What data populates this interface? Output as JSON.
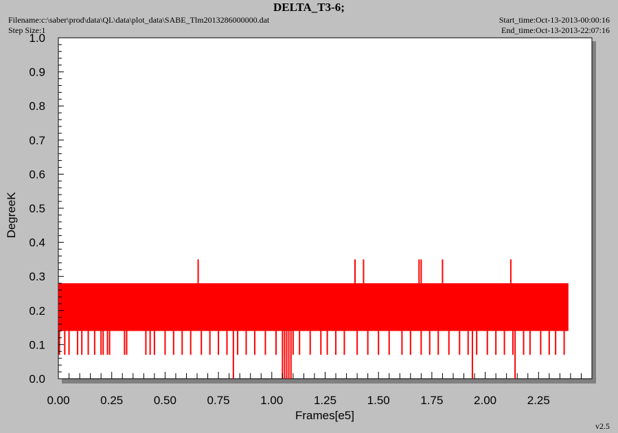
{
  "header": {
    "title": "DELTA_T3-6;",
    "filename": "Filename:c:\\saber\\prod\\data\\QL\\data\\plot_data\\SABE_Tlm2013286000000.dat",
    "step_size": "Step Size:1",
    "start_time": "Start_time:Oct-13-2013-00:00:16",
    "end_time": "End_time:Oct-13-2013-22:07:16"
  },
  "version": "v2.5",
  "colors": {
    "series": "#ff0000",
    "plot_bg": "#ffffff",
    "page_bg": "#c0c0c0"
  },
  "chart_data": {
    "type": "line",
    "title": "DELTA_T3-6;",
    "xlabel": "Frames[e5]",
    "ylabel": "DegreeK",
    "xlim": [
      0,
      2.5
    ],
    "ylim": [
      0,
      1.0
    ],
    "xticks": [
      "0.00",
      "0.25",
      "0.50",
      "0.75",
      "1.00",
      "1.25",
      "1.50",
      "1.75",
      "2.00",
      "2.25"
    ],
    "yticks": [
      "0.0",
      "0.1",
      "0.2",
      "0.3",
      "0.4",
      "0.5",
      "0.6",
      "0.7",
      "0.8",
      "0.9",
      "1.0"
    ],
    "grid": false,
    "series": [
      {
        "band": {
          "x": [
            0.0,
            2.39
          ],
          "y": [
            0.14,
            0.28
          ],
          "description_values": [
            0.14,
            0.21,
            0.28
          ]
        },
        "low_spikes_to_007": [
          0.005,
          0.03,
          0.05,
          0.09,
          0.11,
          0.14,
          0.17,
          0.2,
          0.21,
          0.23,
          0.24,
          0.31,
          0.32,
          0.41,
          0.43,
          0.45,
          0.5,
          0.54,
          0.58,
          0.62,
          0.67,
          0.71,
          0.75,
          0.79,
          0.84,
          0.88,
          0.92,
          0.97,
          1.02,
          1.06,
          1.1,
          1.13,
          1.18,
          1.23,
          1.26,
          1.3,
          1.34,
          1.4,
          1.45,
          1.5,
          1.55,
          1.61,
          1.65,
          1.7,
          1.74,
          1.78,
          1.83,
          1.88,
          1.92,
          1.96,
          2.01,
          2.05,
          2.09,
          2.13,
          2.18,
          2.21,
          2.26,
          2.3,
          2.33,
          2.37
        ],
        "high_spikes_to_035": [
          0.655,
          1.39,
          1.43,
          1.69,
          1.7,
          1.8,
          2.12
        ],
        "drops_to_000": [
          0.82,
          1.05,
          1.06,
          1.07,
          1.08,
          1.09,
          1.94,
          2.14
        ]
      }
    ]
  }
}
